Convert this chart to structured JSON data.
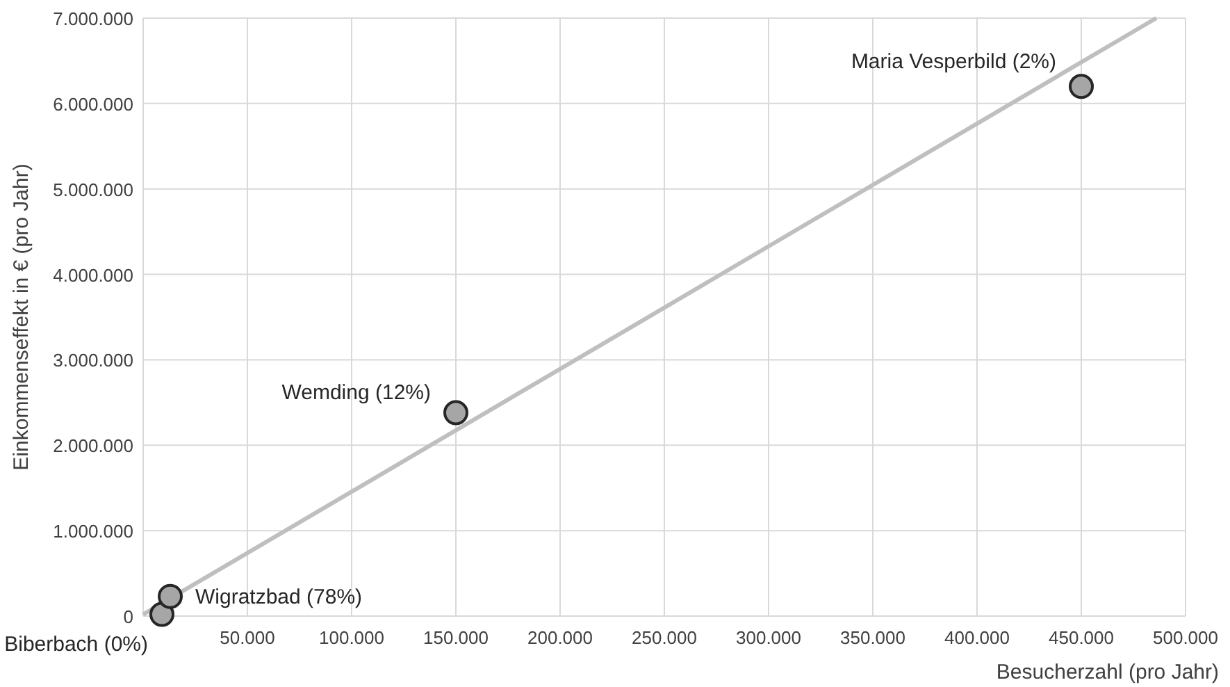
{
  "chart_data": {
    "type": "scatter",
    "xlabel": "Besucherzahl (pro Jahr)",
    "ylabel": "Einkommenseffekt in € (pro Jahr)",
    "xlim": [
      0,
      500000
    ],
    "ylim": [
      0,
      7000000
    ],
    "xticks": [
      {
        "value": 0,
        "label": null
      },
      {
        "value": 50000,
        "label": "50.000"
      },
      {
        "value": 100000,
        "label": "100.000"
      },
      {
        "value": 150000,
        "label": "150.000"
      },
      {
        "value": 200000,
        "label": "200.000"
      },
      {
        "value": 250000,
        "label": "250.000"
      },
      {
        "value": 300000,
        "label": "300.000"
      },
      {
        "value": 350000,
        "label": "350.000"
      },
      {
        "value": 400000,
        "label": "400.000"
      },
      {
        "value": 450000,
        "label": "450.000"
      },
      {
        "value": 500000,
        "label": "500.000"
      }
    ],
    "yticks": [
      0,
      {
        "value": 1000000,
        "label": "1.000.000"
      },
      {
        "value": 2000000,
        "label": "2.000.000"
      },
      {
        "value": 3000000,
        "label": "3.000.000"
      },
      {
        "value": 4000000,
        "label": "4.000.000"
      },
      {
        "value": 5000000,
        "label": "5.000.000"
      },
      {
        "value": 6000000,
        "label": "6.000.000"
      },
      {
        "value": 7000000,
        "label": "7.000.000"
      }
    ],
    "grid": true,
    "marker": "circle",
    "series": [
      {
        "color": "#a6a6a6",
        "x": [
          9000,
          13000,
          150000,
          450000
        ],
        "values": [
          20000,
          230000,
          2380000,
          6200000
        ]
      },
      {
        "type": "line",
        "color": "#bfbfbf",
        "marker": "none",
        "x": [
          0,
          486000
        ],
        "values": [
          20000,
          7000000
        ]
      }
    ],
    "annotations": [
      {
        "text": "Biberbach (0%)",
        "x": 9000,
        "y": 20000
      },
      {
        "text": "Wigratzbad (78%)",
        "x": 13000,
        "y": 230000
      },
      {
        "text": "Wemding (12%)",
        "x": 150000,
        "y": 2380000
      },
      {
        "text": "Maria Vesperbild (2%)",
        "x": 450000,
        "y": 6200000
      }
    ]
  }
}
